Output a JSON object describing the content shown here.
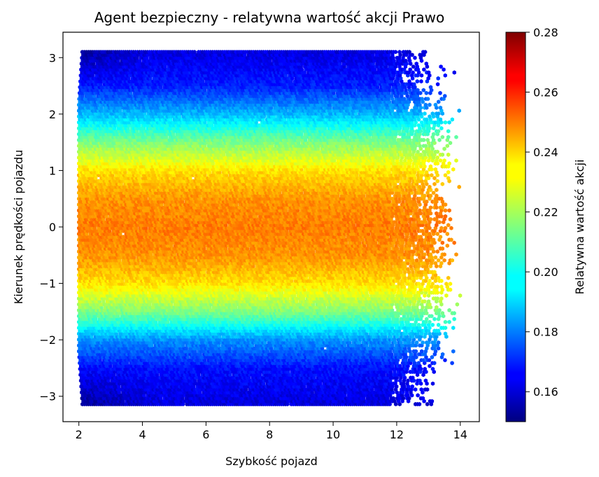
{
  "chart_data": {
    "type": "heatmap",
    "subtype": "hexbin",
    "title": "Agent bezpieczny - relatywna wartość akcji Prawo",
    "xlabel": "Szybkość pojazd",
    "ylabel": "Kierunek prędkości pojazdu",
    "xlim": [
      1.5,
      14.6
    ],
    "ylim": [
      -3.45,
      3.45
    ],
    "x_ticks": [
      2,
      4,
      6,
      8,
      10,
      12,
      14
    ],
    "x_tick_labels": [
      "2",
      "4",
      "6",
      "8",
      "10",
      "12",
      "14"
    ],
    "y_ticks": [
      3,
      2,
      1,
      0,
      -1,
      -2,
      -3
    ],
    "y_tick_labels": [
      "3",
      "2",
      "1",
      "0",
      "−1",
      "−2",
      "−3"
    ],
    "x_range": [
      2,
      14
    ],
    "y_range": [
      -3.14,
      3.14
    ],
    "colormap": "jet",
    "colorbar": {
      "label": "Relatywna wartość akcji",
      "vmin": 0.15,
      "vmax": 0.28,
      "ticks": [
        0.28,
        0.26,
        0.24,
        0.22,
        0.2,
        0.18,
        0.16
      ],
      "tick_labels": [
        "0.28",
        "0.26",
        "0.24",
        "0.22",
        "0.20",
        "0.18",
        "0.16"
      ]
    },
    "value_profile_by_y": [
      {
        "y": -3.14,
        "value": 0.162
      },
      {
        "y": -2.5,
        "value": 0.168
      },
      {
        "y": -2.0,
        "value": 0.185
      },
      {
        "y": -1.5,
        "value": 0.215
      },
      {
        "y": -1.0,
        "value": 0.235
      },
      {
        "y": -0.5,
        "value": 0.245
      },
      {
        "y": 0.0,
        "value": 0.248
      },
      {
        "y": 0.5,
        "value": 0.245
      },
      {
        "y": 1.0,
        "value": 0.235
      },
      {
        "y": 1.5,
        "value": 0.215
      },
      {
        "y": 2.0,
        "value": 0.19
      },
      {
        "y": 2.5,
        "value": 0.17
      },
      {
        "y": 3.14,
        "value": 0.162
      }
    ]
  }
}
